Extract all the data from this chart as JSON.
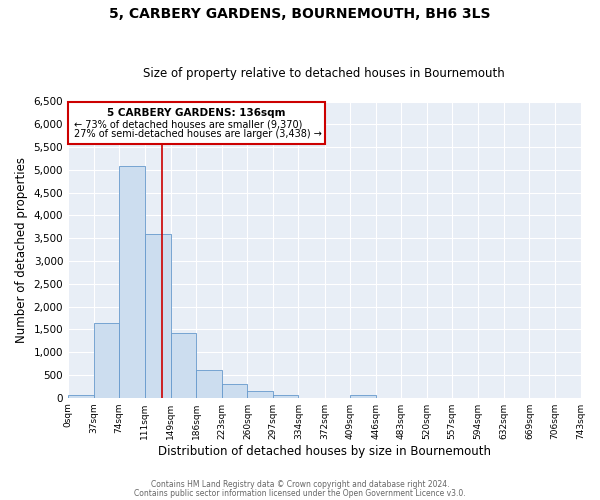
{
  "title": "5, CARBERY GARDENS, BOURNEMOUTH, BH6 3LS",
  "subtitle": "Size of property relative to detached houses in Bournemouth",
  "xlabel": "Distribution of detached houses by size in Bournemouth",
  "ylabel": "Number of detached properties",
  "bar_color": "#ccddef",
  "bar_edge_color": "#6699cc",
  "bg_color": "#e8eef6",
  "grid_color": "white",
  "annotation_box_color": "#cc0000",
  "vline_color": "#cc0000",
  "annotation_text_line1": "5 CARBERY GARDENS: 136sqm",
  "annotation_text_line2": "← 73% of detached houses are smaller (9,370)",
  "annotation_text_line3": "27% of semi-detached houses are larger (3,438) →",
  "bin_edges": [
    0,
    37,
    74,
    111,
    149,
    186,
    223,
    260,
    297,
    334,
    372,
    409,
    446,
    483,
    520,
    557,
    594,
    632,
    669,
    706,
    743
  ],
  "bin_counts": [
    60,
    1650,
    5080,
    3600,
    1430,
    610,
    300,
    150,
    70,
    0,
    0,
    50,
    0,
    0,
    0,
    0,
    0,
    0,
    0,
    0
  ],
  "vline_x": 136,
  "ylim": [
    0,
    6500
  ],
  "yticks": [
    0,
    500,
    1000,
    1500,
    2000,
    2500,
    3000,
    3500,
    4000,
    4500,
    5000,
    5500,
    6000,
    6500
  ],
  "footer_line1": "Contains HM Land Registry data © Crown copyright and database right 2024.",
  "footer_line2": "Contains public sector information licensed under the Open Government Licence v3.0."
}
